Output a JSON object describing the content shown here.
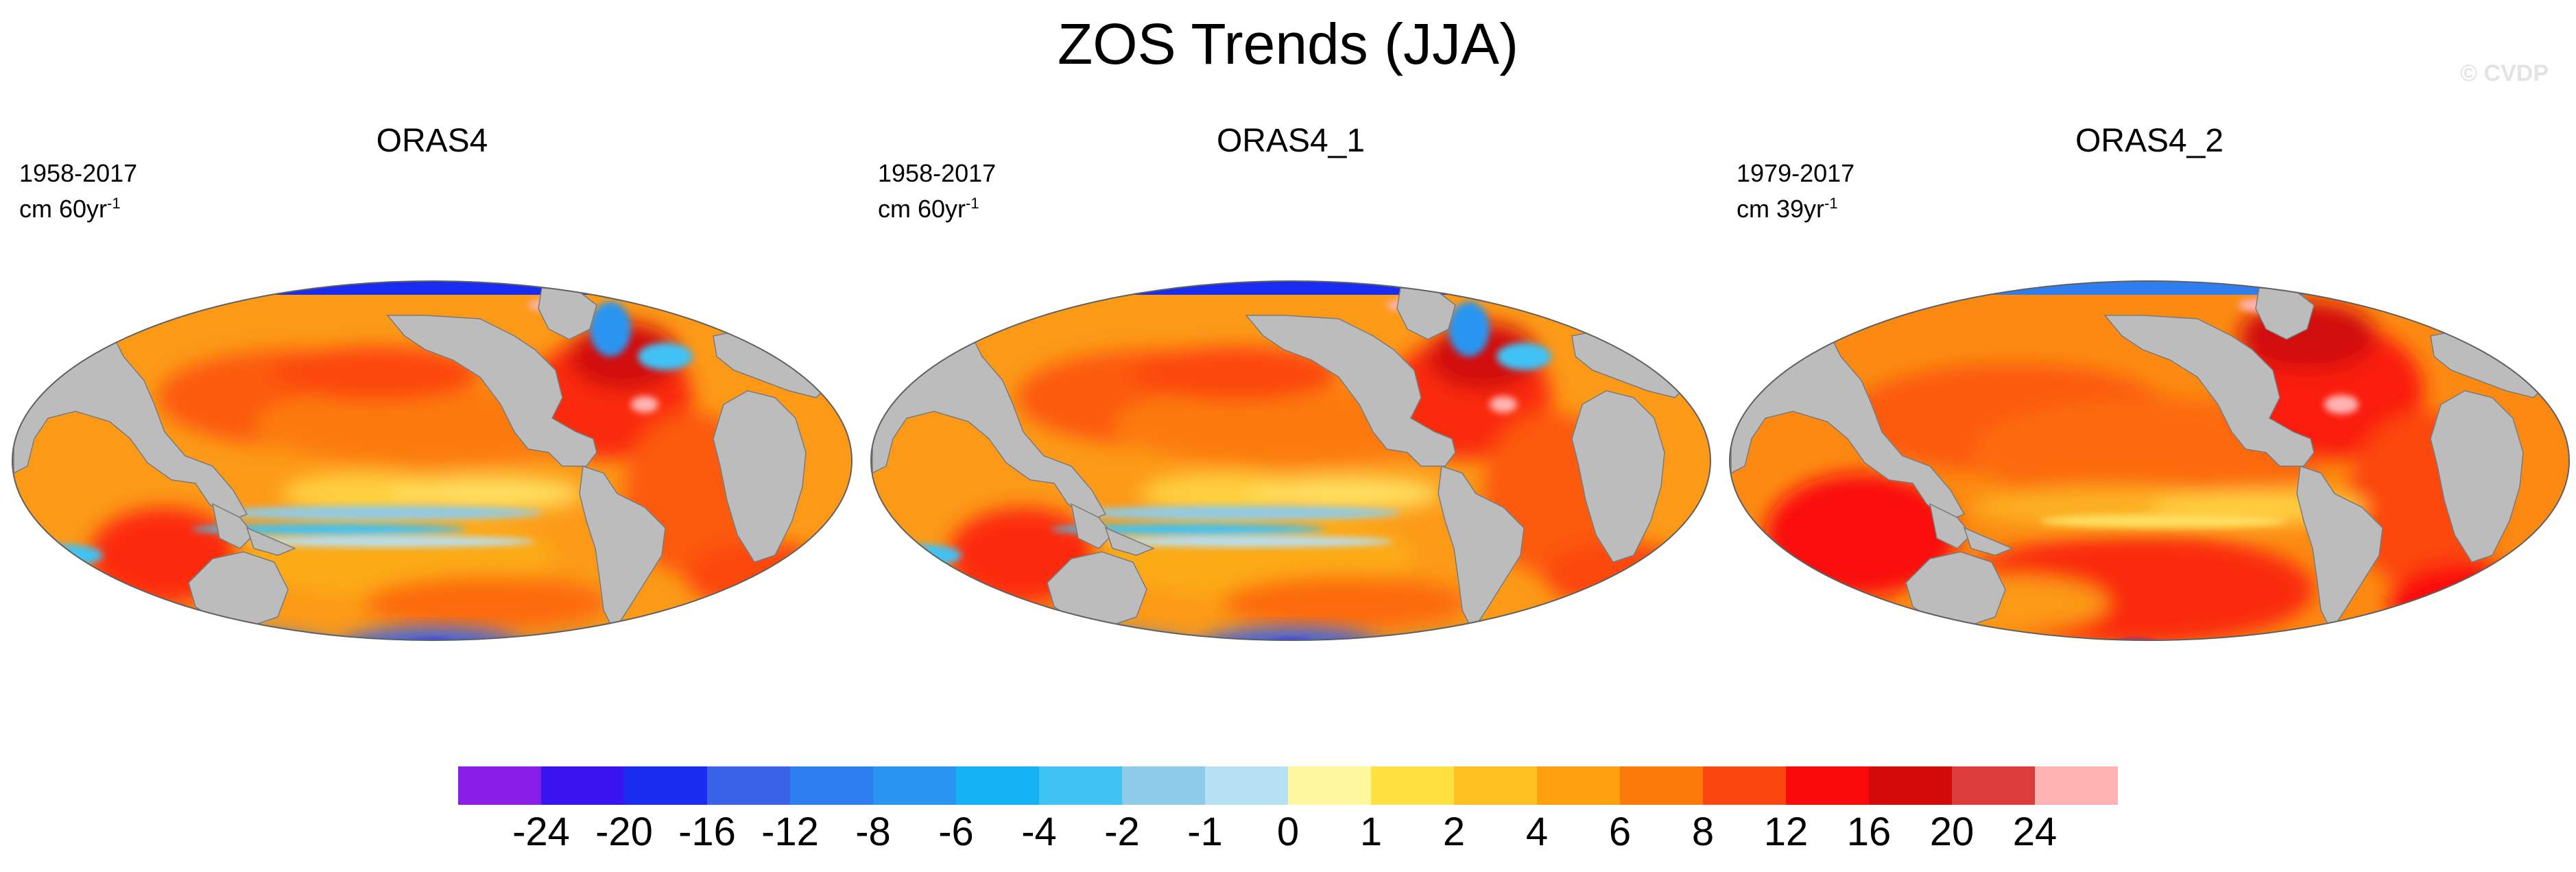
{
  "figure": {
    "title": "ZOS Trends (JJA)",
    "watermark": "© CVDP"
  },
  "panels": [
    {
      "title": "ORAS4",
      "period": "1958-2017",
      "units_base": "cm 60yr",
      "units_exp": "-1"
    },
    {
      "title": "ORAS4_1",
      "period": "1958-2017",
      "units_base": "cm 60yr",
      "units_exp": "-1"
    },
    {
      "title": "ORAS4_2",
      "period": "1979-2017",
      "units_base": "cm 39yr",
      "units_exp": "-1"
    }
  ],
  "colorbar": {
    "labels": [
      "-24",
      "-20",
      "-16",
      "-12",
      "-8",
      "-6",
      "-4",
      "-2",
      "-1",
      "0",
      "1",
      "2",
      "4",
      "6",
      "8",
      "12",
      "16",
      "20",
      "24"
    ],
    "colors": [
      "#8a1ee6",
      "#3a14f0",
      "#1a2cf0",
      "#3a62e6",
      "#2e7ef0",
      "#2a95f0",
      "#14b2f5",
      "#40c2f5",
      "#8ecbe8",
      "#b8e0f5",
      "#fff7a0",
      "#ffe040",
      "#fcc020",
      "#fca010",
      "#fc7a0a",
      "#fc4610",
      "#fa0a0a",
      "#d20a0a",
      "#dc3c3c",
      "#ffb4b4"
    ]
  },
  "colors": {
    "land": "#bcbcbc",
    "ocean_base": "#fc9a18",
    "ice_white": "#ffffff"
  }
}
